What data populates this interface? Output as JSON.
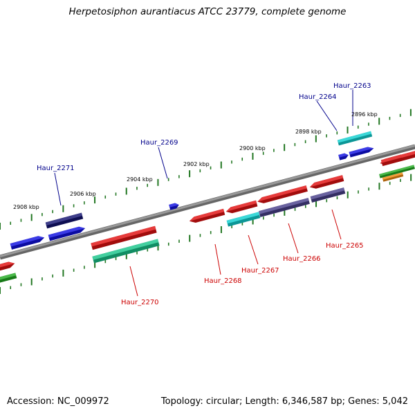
{
  "title": "Herpetosiphon aurantiacus ATCC 23779, complete genome",
  "footer": {
    "accession": "Accession: NC_009972",
    "topology": "Topology: circular; Length: 6,346,587 bp; Genes: 5,042"
  },
  "scale_labels": [
    "2896 kbp",
    "2898 kbp",
    "2900 kbp",
    "2902 kbp",
    "2904 kbp",
    "2906 kbp",
    "2908 kbp"
  ],
  "colors": {
    "backbone": "#888888",
    "tick": "#227722",
    "forward_label": "#00008B",
    "reverse_label": "#CC0000",
    "red": "#E01010",
    "blue": "#1010E0",
    "navy": "#141470",
    "cyan": "#10D0D0",
    "slate": "#48408A",
    "seagreen": "#18C48A",
    "green": "#22AA22",
    "orange": "#F08A10"
  },
  "gene_labels": {
    "forward": [
      "Haur_2263",
      "Haur_2264",
      "Haur_2269",
      "Haur_2271"
    ],
    "reverse": [
      "Haur_2265",
      "Haur_2266",
      "Haur_2267",
      "Haur_2268",
      "Haur_2270"
    ]
  }
}
